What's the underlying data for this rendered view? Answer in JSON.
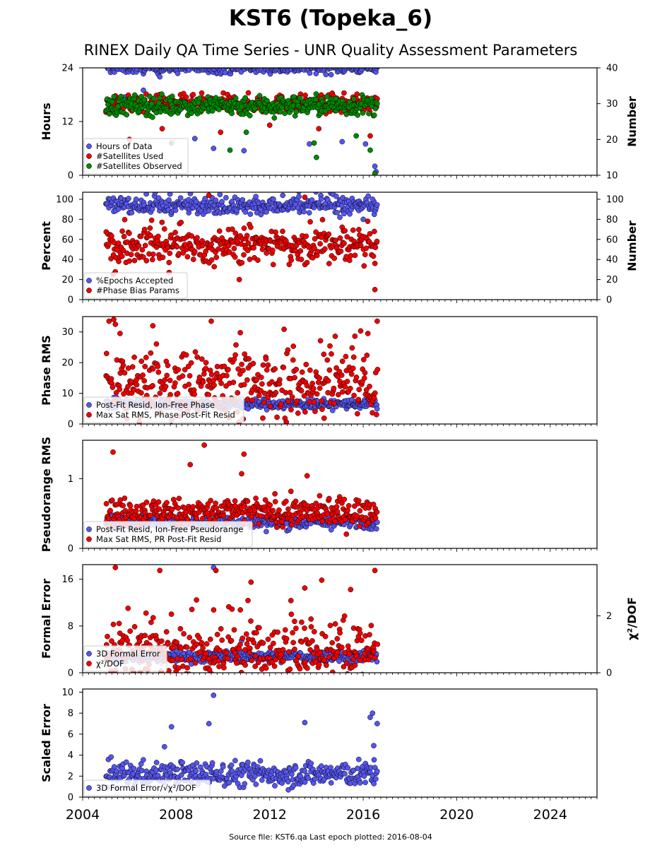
{
  "title": "KST6 (Topeka_6)",
  "subtitle": "RINEX Daily QA Time Series - UNR Quality Assessment Parameters",
  "footer": "Source file: KST6.qa Last epoch plotted: 2016-08-04",
  "colors": {
    "blue": "#5555ee",
    "red": "#ee0000",
    "green": "#008800",
    "edge": "#000000"
  },
  "chart_data": [
    {
      "type": "scatter",
      "panel": 1,
      "ylabel": "Hours",
      "ylabel_right": "Number",
      "ylim": [
        0,
        24
      ],
      "yticks": [
        "0",
        "12",
        "24"
      ],
      "ylim_right": [
        10,
        40
      ],
      "yticks_right": [
        "10",
        "20",
        "30",
        "40"
      ],
      "xlim": [
        2004,
        2026
      ],
      "series": [
        {
          "name": "Hours of Data",
          "color": "blue",
          "axis": "left",
          "typical": 24,
          "spread": 0.6,
          "outliers": [
            [
              2005.8,
              17.5
            ],
            [
              2006.6,
              19
            ],
            [
              2007.3,
              22
            ],
            [
              2008.8,
              8.2
            ],
            [
              2009.6,
              6
            ],
            [
              2010.9,
              5.5
            ],
            [
              2013.7,
              7
            ],
            [
              2015.1,
              7.5
            ],
            [
              2016.1,
              7
            ],
            [
              2016.5,
              2
            ],
            [
              2016.55,
              0.8
            ]
          ]
        },
        {
          "name": "#Satellites Used",
          "color": "red",
          "axis": "right",
          "typical": 30,
          "spread": 1.2,
          "outliers": [
            [
              2006.0,
              20
            ],
            [
              2007.4,
              23
            ],
            [
              2009.9,
              22
            ],
            [
              2012.0,
              24
            ],
            [
              2014.1,
              23
            ],
            [
              2016.3,
              21
            ]
          ]
        },
        {
          "name": "#Satellites Observed",
          "color": "green",
          "axis": "right",
          "typical": 29.5,
          "spread": 1.4,
          "outliers": [
            [
              2007.8,
              19
            ],
            [
              2010.3,
              17
            ],
            [
              2011.0,
              22
            ],
            [
              2012.2,
              26
            ],
            [
              2013.9,
              19
            ],
            [
              2014.0,
              15
            ],
            [
              2015.7,
              21
            ],
            [
              2016.3,
              17
            ],
            [
              2016.5,
              10.5
            ]
          ]
        }
      ]
    },
    {
      "type": "scatter",
      "panel": 2,
      "ylabel": "Percent",
      "ylabel_right": "Number",
      "ylim": [
        0,
        107
      ],
      "yticks": [
        "0",
        "20",
        "40",
        "60",
        "80",
        "100"
      ],
      "ylim_right": [
        0,
        107
      ],
      "yticks_right": [
        "0",
        "20",
        "40",
        "60",
        "80",
        "100"
      ],
      "xlim": [
        2004,
        2026
      ],
      "series": [
        {
          "name": "%Epochs Accepted",
          "color": "blue",
          "axis": "left",
          "typical": 93,
          "spread": 4,
          "outliers": [
            [
              2015.0,
              82
            ],
            [
              2016.0,
              80
            ],
            [
              2016.4,
              100
            ]
          ]
        },
        {
          "name": "#Phase Bias Params",
          "color": "red",
          "axis": "right",
          "typical": 53,
          "spread": 8,
          "outliers": [
            [
              2009.4,
              104
            ],
            [
              2013.5,
              102
            ],
            [
              2005.3,
              25
            ],
            [
              2007.7,
              27
            ],
            [
              2010.7,
              20
            ],
            [
              2016.5,
              10
            ]
          ]
        }
      ]
    },
    {
      "type": "scatter",
      "panel": 3,
      "ylabel": "Phase RMS",
      "ylim": [
        0,
        35
      ],
      "yticks": [
        "0",
        "10",
        "20",
        "30"
      ],
      "xlim": [
        2004,
        2026
      ],
      "series": [
        {
          "name": "Post-Fit Resid, Ion-Free Phase",
          "color": "blue",
          "axis": "left",
          "typical": 6.5,
          "spread": 0.8,
          "outliers": []
        },
        {
          "name": "Max Sat RMS, Phase Post-Fit Resid",
          "color": "red",
          "axis": "left",
          "typical": 12,
          "spread": 5,
          "outliers": [
            [
              2005.4,
              32.5
            ],
            [
              2009.5,
              33.5
            ],
            [
              2016.6,
              33.5
            ],
            [
              2007.0,
              32
            ],
            [
              2005.6,
              29.5
            ],
            [
              2016.2,
              29.5
            ]
          ]
        }
      ]
    },
    {
      "type": "scatter",
      "panel": 4,
      "ylabel": "Pseudorange RMS",
      "ylim": [
        0,
        1.55
      ],
      "yticks": [
        "0",
        "1"
      ],
      "xlim": [
        2004,
        2026
      ],
      "series": [
        {
          "name": "Post-Fit Resid, Ion-Free Pseudorange",
          "color": "blue",
          "axis": "left",
          "typical": 0.38,
          "spread": 0.05,
          "outliers": []
        },
        {
          "name": "Max Sat RMS, PR Post-Fit Resid",
          "color": "red",
          "axis": "left",
          "typical": 0.52,
          "spread": 0.1,
          "outliers": [
            [
              2005.3,
              1.38
            ],
            [
              2009.2,
              1.48
            ],
            [
              2008.6,
              1.2
            ],
            [
              2010.9,
              1.35
            ],
            [
              2010.8,
              1.07
            ],
            [
              2013.6,
              1.04
            ]
          ]
        }
      ]
    },
    {
      "type": "scatter",
      "panel": 5,
      "ylabel": "Formal Error",
      "ylabel_right": "χ²/DOF",
      "ylim": [
        0,
        18.5
      ],
      "yticks": [
        "0",
        "8",
        "16"
      ],
      "ylim_right": [
        0,
        3.8
      ],
      "yticks_right": [
        "0",
        "2"
      ],
      "xlim": [
        2004,
        2026
      ],
      "series": [
        {
          "name": "3D Formal Error",
          "color": "blue",
          "axis": "left",
          "typical": 2.8,
          "spread": 0.5,
          "outliers": [
            [
              2009.6,
              18
            ],
            [
              2008.0,
              5
            ],
            [
              2010.8,
              5.5
            ]
          ]
        },
        {
          "name": "χ²/DOF",
          "color": "red",
          "axis": "left",
          "typical": 3.2,
          "spread": 2.5,
          "outliers": [
            [
              2005.4,
              18
            ],
            [
              2007.3,
              17.5
            ],
            [
              2009.7,
              17.5
            ],
            [
              2016.5,
              17.5
            ],
            [
              2011.2,
              15.5
            ],
            [
              2013.5,
              14.5
            ]
          ]
        }
      ]
    },
    {
      "type": "scatter",
      "panel": 6,
      "ylabel": "Scaled Error",
      "ylim": [
        0,
        10.3
      ],
      "yticks": [
        "0",
        "2",
        "4",
        "6",
        "8",
        "10"
      ],
      "xlim": [
        2004,
        2026
      ],
      "xticks": [
        "2004",
        "2008",
        "2012",
        "2016",
        "2020",
        "2024"
      ],
      "series": [
        {
          "name": "3D Formal Error/√χ²/DOF",
          "color": "blue",
          "axis": "left",
          "typical": 2.2,
          "spread": 0.6,
          "outliers": [
            [
              2009.6,
              9.7
            ],
            [
              2009.4,
              7
            ],
            [
              2007.8,
              6.7
            ],
            [
              2013.5,
              7.1
            ],
            [
              2016.3,
              7.6
            ],
            [
              2016.4,
              8
            ],
            [
              2016.6,
              7
            ],
            [
              2016.45,
              4.9
            ],
            [
              2007.5,
              4.8
            ]
          ]
        }
      ]
    }
  ],
  "data_start": 2005.0,
  "data_end": 2016.6
}
